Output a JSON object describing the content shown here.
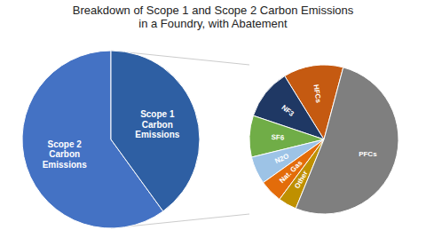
{
  "chart_data": [
    {
      "type": "pie",
      "title": "Breakdown of Scope 1 and Scope 2 Carbon Emissions\nin a Foundry, with Abatement",
      "categories": [
        "Scope 2\nCarbon\nEmissions",
        "Scope 1\nCarbon\nEmissions"
      ],
      "values": [
        60,
        40
      ],
      "colors": [
        "#4472C4",
        "#2E5FA3"
      ]
    },
    {
      "type": "pie",
      "categories": [
        "HFCs",
        "NF3",
        "SF6",
        "N2O",
        "Nat. Gas",
        "Other",
        "PFCs"
      ],
      "values": [
        13,
        11,
        9,
        6,
        5,
        4,
        52
      ],
      "colors": [
        "#C55A11",
        "#1F3864",
        "#70AD47",
        "#9DC3E6",
        "#E36C0A",
        "#BF9000",
        "#7F7F7F"
      ]
    }
  ]
}
